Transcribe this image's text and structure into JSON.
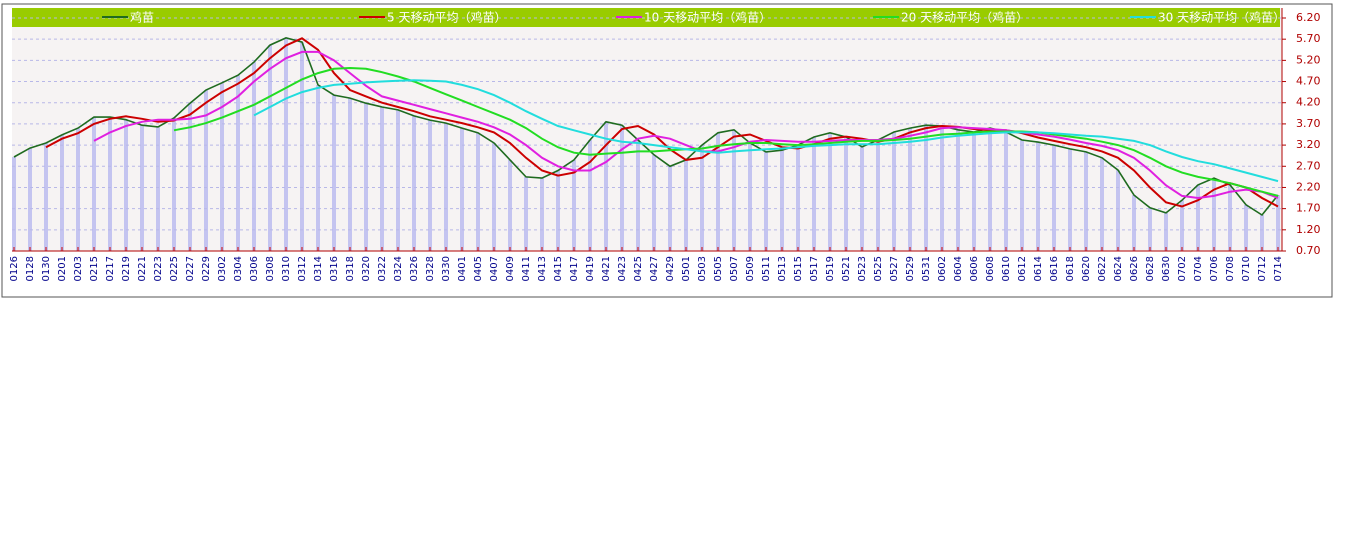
{
  "chart_data": {
    "type": "line",
    "categories": [
      "0126",
      "0128",
      "0130",
      "0201",
      "0203",
      "0215",
      "0217",
      "0219",
      "0221",
      "0223",
      "0225",
      "0227",
      "0229",
      "0302",
      "0304",
      "0306",
      "0308",
      "0310",
      "0312",
      "0314",
      "0316",
      "0318",
      "0320",
      "0322",
      "0324",
      "0326",
      "0328",
      "0330",
      "0401",
      "0405",
      "0407",
      "0409",
      "0411",
      "0413",
      "0415",
      "0417",
      "0419",
      "0421",
      "0423",
      "0425",
      "0427",
      "0429",
      "0501",
      "0503",
      "0505",
      "0507",
      "0509",
      "0511",
      "0513",
      "0515",
      "0517",
      "0519",
      "0521",
      "0523",
      "0525",
      "0527",
      "0529",
      "0531",
      "0602",
      "0604",
      "0606",
      "0608",
      "0610",
      "0612",
      "0614",
      "0616",
      "0618",
      "0620",
      "0622",
      "0624",
      "0626",
      "0628",
      "0630",
      "0702",
      "0704",
      "0706",
      "0708",
      "0710",
      "0712",
      "0714"
    ],
    "series": [
      {
        "name": "鸡苗",
        "color": "#1f6b1f",
        "values": [
          2.92,
          3.13,
          3.25,
          3.44,
          3.6,
          3.86,
          3.86,
          3.8,
          3.67,
          3.63,
          3.84,
          4.19,
          4.5,
          4.67,
          4.85,
          5.16,
          5.56,
          5.73,
          5.63,
          4.62,
          4.38,
          4.31,
          4.19,
          4.1,
          4.03,
          3.89,
          3.79,
          3.72,
          3.6,
          3.49,
          3.25,
          2.85,
          2.45,
          2.42,
          2.6,
          2.85,
          3.32,
          3.75,
          3.67,
          3.32,
          2.97,
          2.7,
          2.85,
          3.2,
          3.49,
          3.56,
          3.25,
          3.04,
          3.08,
          3.2,
          3.39,
          3.49,
          3.39,
          3.16,
          3.32,
          3.51,
          3.6,
          3.67,
          3.65,
          3.56,
          3.51,
          3.6,
          3.51,
          3.32,
          3.27,
          3.2,
          3.11,
          3.04,
          2.9,
          2.61,
          2.02,
          1.72,
          1.6,
          1.9,
          2.26,
          2.42,
          2.26,
          1.79,
          1.55,
          2.02
        ]
      },
      {
        "name": "5 天移动平均（鸡苗）",
        "color": "#cc0000",
        "values": [
          null,
          null,
          3.15,
          3.35,
          3.48,
          3.7,
          3.82,
          3.88,
          3.82,
          3.75,
          3.78,
          3.92,
          4.2,
          4.45,
          4.65,
          4.9,
          5.25,
          5.55,
          5.72,
          5.45,
          4.9,
          4.5,
          4.35,
          4.2,
          4.1,
          4.0,
          3.88,
          3.8,
          3.72,
          3.62,
          3.5,
          3.25,
          2.9,
          2.6,
          2.48,
          2.55,
          2.8,
          3.2,
          3.58,
          3.65,
          3.45,
          3.1,
          2.85,
          2.9,
          3.15,
          3.4,
          3.45,
          3.3,
          3.15,
          3.12,
          3.22,
          3.35,
          3.4,
          3.35,
          3.28,
          3.35,
          3.5,
          3.6,
          3.65,
          3.63,
          3.58,
          3.55,
          3.55,
          3.48,
          3.38,
          3.3,
          3.22,
          3.15,
          3.05,
          2.9,
          2.6,
          2.2,
          1.85,
          1.75,
          1.9,
          2.15,
          2.3,
          2.2,
          1.95,
          1.75
        ]
      },
      {
        "name": "10 天移动平均（鸡苗）",
        "color": "#e020e0",
        "values": [
          null,
          null,
          null,
          null,
          null,
          3.3,
          3.5,
          3.65,
          3.75,
          3.8,
          3.8,
          3.82,
          3.9,
          4.1,
          4.35,
          4.7,
          5.0,
          5.25,
          5.4,
          5.4,
          5.2,
          4.9,
          4.6,
          4.35,
          4.25,
          4.15,
          4.05,
          3.95,
          3.85,
          3.75,
          3.62,
          3.45,
          3.2,
          2.9,
          2.7,
          2.6,
          2.6,
          2.8,
          3.1,
          3.35,
          3.42,
          3.35,
          3.2,
          3.05,
          3.05,
          3.15,
          3.28,
          3.32,
          3.3,
          3.28,
          3.28,
          3.3,
          3.32,
          3.32,
          3.32,
          3.35,
          3.42,
          3.5,
          3.6,
          3.62,
          3.6,
          3.58,
          3.55,
          3.5,
          3.45,
          3.4,
          3.33,
          3.25,
          3.18,
          3.08,
          2.9,
          2.6,
          2.25,
          2.0,
          1.95,
          2.0,
          2.1,
          2.15,
          2.1,
          1.95
        ]
      },
      {
        "name": "20 天移动平均（鸡苗）",
        "color": "#22dd22",
        "values": [
          null,
          null,
          null,
          null,
          null,
          null,
          null,
          null,
          null,
          null,
          3.55,
          3.62,
          3.72,
          3.85,
          4.0,
          4.15,
          4.35,
          4.55,
          4.75,
          4.9,
          5.0,
          5.02,
          5.0,
          4.92,
          4.82,
          4.7,
          4.55,
          4.4,
          4.25,
          4.1,
          3.95,
          3.8,
          3.6,
          3.35,
          3.15,
          3.02,
          2.97,
          3.0,
          3.02,
          3.05,
          3.05,
          3.08,
          3.1,
          3.12,
          3.18,
          3.22,
          3.25,
          3.25,
          3.22,
          3.2,
          3.22,
          3.25,
          3.28,
          3.3,
          3.3,
          3.32,
          3.35,
          3.4,
          3.45,
          3.47,
          3.5,
          3.52,
          3.52,
          3.52,
          3.5,
          3.45,
          3.4,
          3.35,
          3.28,
          3.2,
          3.08,
          2.9,
          2.7,
          2.55,
          2.45,
          2.38,
          2.3,
          2.2,
          2.1,
          2.0
        ]
      },
      {
        "name": "30 天移动平均（鸡苗）",
        "color": "#22dddd",
        "values": [
          null,
          null,
          null,
          null,
          null,
          null,
          null,
          null,
          null,
          null,
          null,
          null,
          null,
          null,
          null,
          3.9,
          4.1,
          4.3,
          4.45,
          4.55,
          4.62,
          4.65,
          4.68,
          4.7,
          4.72,
          4.73,
          4.72,
          4.7,
          4.62,
          4.52,
          4.38,
          4.2,
          4.0,
          3.82,
          3.65,
          3.55,
          3.45,
          3.35,
          3.28,
          3.25,
          3.2,
          3.15,
          3.1,
          3.05,
          3.02,
          3.05,
          3.08,
          3.1,
          3.12,
          3.15,
          3.18,
          3.2,
          3.22,
          3.22,
          3.22,
          3.25,
          3.28,
          3.32,
          3.38,
          3.42,
          3.45,
          3.48,
          3.5,
          3.5,
          3.5,
          3.48,
          3.45,
          3.42,
          3.4,
          3.35,
          3.3,
          3.2,
          3.05,
          2.92,
          2.82,
          2.75,
          2.65,
          2.55,
          2.45,
          2.35
        ]
      }
    ],
    "ylim": [
      0.7,
      6.2
    ],
    "yticks": [
      {
        "value": 0.7,
        "label": "0.70"
      },
      {
        "value": 1.2,
        "label": "1.20"
      },
      {
        "value": 1.7,
        "label": "1.70"
      },
      {
        "value": 2.2,
        "label": "2.20"
      },
      {
        "value": 2.7,
        "label": "2.70"
      },
      {
        "value": 3.2,
        "label": "3.20"
      },
      {
        "value": 3.7,
        "label": "3.70"
      },
      {
        "value": 4.2,
        "label": "4.20"
      },
      {
        "value": 4.7,
        "label": "4.70"
      },
      {
        "value": 5.2,
        "label": "5.20"
      },
      {
        "value": 5.7,
        "label": "5.70"
      },
      {
        "value": 6.2,
        "label": "6.20"
      }
    ],
    "grid": true,
    "bar_color": "#c4c4f0"
  }
}
